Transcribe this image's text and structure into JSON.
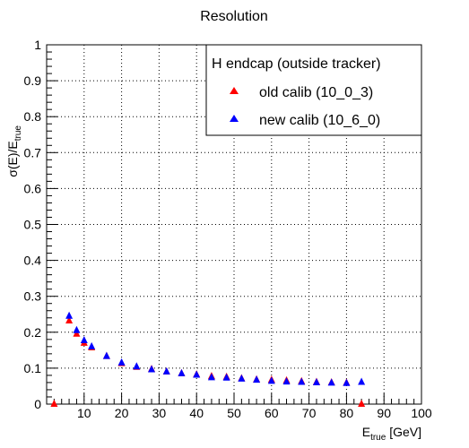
{
  "chart_data": {
    "type": "scatter",
    "title": "Resolution",
    "xlabel": {
      "main": "E",
      "sub": "true",
      "unit": " [GeV]"
    },
    "ylabel": {
      "sigma": "σ(E)/E",
      "sub": "true"
    },
    "xlim": [
      0,
      100
    ],
    "ylim": [
      0,
      1
    ],
    "grid": true,
    "x_ticks": [
      10,
      20,
      30,
      40,
      50,
      60,
      70,
      80,
      90,
      100
    ],
    "y_ticks": [
      0,
      0.1,
      0.2,
      0.3,
      0.4,
      0.5,
      0.6,
      0.7,
      0.8,
      0.9,
      1
    ],
    "legend": {
      "title": "H endcap (outside tracker)",
      "placement": "top-right",
      "entries": [
        "old calib (10_0_3)",
        "new calib (10_6_0)"
      ]
    },
    "series": [
      {
        "name": "old calib (10_0_3)",
        "color": "#ff0000",
        "marker": "triangle-up",
        "points": [
          [
            2,
            0.0
          ],
          [
            6,
            0.232
          ],
          [
            8,
            0.195
          ],
          [
            10,
            0.17
          ],
          [
            12,
            0.157
          ],
          [
            16,
            0.133
          ],
          [
            20,
            0.113
          ],
          [
            24,
            0.103
          ],
          [
            28,
            0.097
          ],
          [
            32,
            0.09
          ],
          [
            36,
            0.085
          ],
          [
            40,
            0.082
          ],
          [
            44,
            0.077
          ],
          [
            48,
            0.075
          ],
          [
            52,
            0.071
          ],
          [
            56,
            0.068
          ],
          [
            60,
            0.067
          ],
          [
            64,
            0.065
          ],
          [
            68,
            0.063
          ],
          [
            72,
            0.061
          ],
          [
            76,
            0.06
          ],
          [
            80,
            0.059
          ],
          [
            84,
            0.0
          ]
        ]
      },
      {
        "name": "new calib (10_6_0)",
        "color": "#0000ff",
        "marker": "triangle-up",
        "points": [
          [
            6,
            0.245
          ],
          [
            8,
            0.205
          ],
          [
            10,
            0.177
          ],
          [
            12,
            0.16
          ],
          [
            16,
            0.133
          ],
          [
            20,
            0.115
          ],
          [
            24,
            0.104
          ],
          [
            28,
            0.096
          ],
          [
            32,
            0.09
          ],
          [
            36,
            0.085
          ],
          [
            40,
            0.081
          ],
          [
            44,
            0.074
          ],
          [
            48,
            0.073
          ],
          [
            52,
            0.07
          ],
          [
            56,
            0.067
          ],
          [
            60,
            0.064
          ],
          [
            64,
            0.062
          ],
          [
            68,
            0.061
          ],
          [
            72,
            0.06
          ],
          [
            76,
            0.059
          ],
          [
            80,
            0.058
          ],
          [
            84,
            0.061
          ]
        ]
      }
    ]
  }
}
